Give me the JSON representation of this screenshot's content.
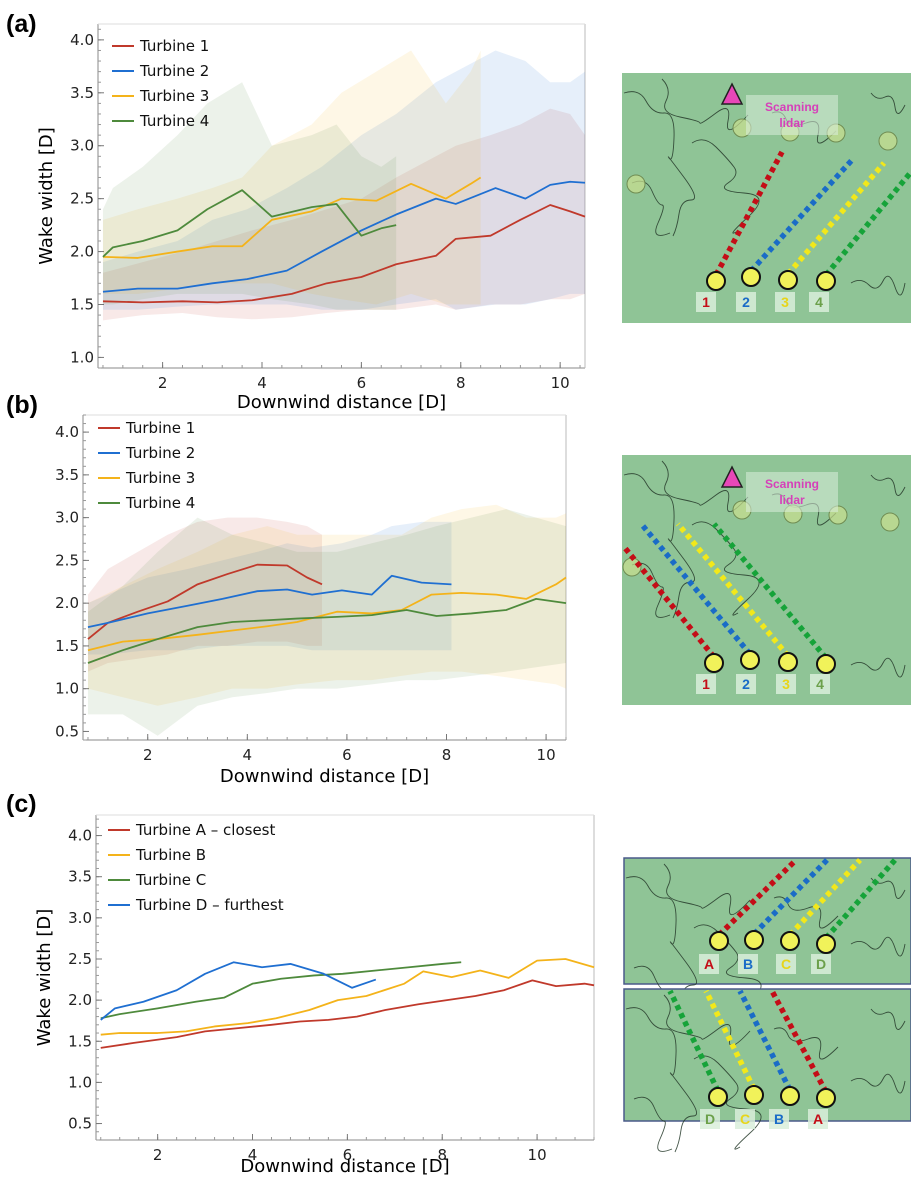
{
  "panels": [
    {
      "label": "(a)"
    },
    {
      "label": "(b)"
    },
    {
      "label": "(c)"
    }
  ],
  "chart_data": [
    {
      "type": "line",
      "xlabel": "Downwind distance [D]",
      "ylabel": "Wake width [D]",
      "xlim": [
        0.7,
        10.5
      ],
      "ylim": [
        0.9,
        4.15
      ],
      "xticks": [
        2,
        4,
        6,
        8,
        10
      ],
      "yticks": [
        1.0,
        1.5,
        2.0,
        2.5,
        3.0,
        3.5,
        4.0
      ],
      "ytick_labels": [
        "1.0",
        "1.5",
        "2.0",
        "2.5",
        "3.0",
        "3.5",
        "4.0"
      ],
      "legend": "top-left",
      "series": [
        {
          "name": "Turbine 1",
          "color": "#c0392b",
          "x": [
            0.8,
            1.6,
            2.4,
            3.1,
            3.8,
            4.6,
            5.3,
            6.0,
            6.7,
            7.5,
            7.9,
            8.6,
            9.2,
            9.8,
            10.2,
            10.5
          ],
          "y": [
            1.53,
            1.52,
            1.53,
            1.52,
            1.54,
            1.6,
            1.7,
            1.76,
            1.88,
            1.96,
            2.12,
            2.15,
            2.3,
            2.44,
            2.38,
            2.33
          ],
          "lo": [
            1.35,
            1.4,
            1.42,
            1.38,
            1.36,
            1.38,
            1.42,
            1.45,
            1.45,
            1.5,
            1.45,
            1.5,
            1.5,
            1.55,
            1.55,
            1.6
          ],
          "hi": [
            1.8,
            1.9,
            2.0,
            2.1,
            2.2,
            2.3,
            2.4,
            2.5,
            2.7,
            2.9,
            3.0,
            3.1,
            3.2,
            3.35,
            3.3,
            3.1
          ]
        },
        {
          "name": "Turbine 2",
          "color": "#1f6fd1",
          "x": [
            0.8,
            1.5,
            2.3,
            3.0,
            3.7,
            4.5,
            5.2,
            6.0,
            6.7,
            7.5,
            7.9,
            8.7,
            9.3,
            9.8,
            10.2,
            10.5
          ],
          "y": [
            1.62,
            1.65,
            1.65,
            1.7,
            1.74,
            1.82,
            2.0,
            2.2,
            2.35,
            2.5,
            2.45,
            2.6,
            2.5,
            2.63,
            2.66,
            2.65
          ],
          "lo": [
            1.45,
            1.45,
            1.48,
            1.5,
            1.5,
            1.5,
            1.45,
            1.45,
            1.5,
            1.55,
            1.45,
            1.5,
            1.5,
            1.55,
            1.6,
            1.6
          ],
          "hi": [
            1.9,
            2.0,
            2.1,
            2.3,
            2.4,
            2.6,
            2.8,
            3.1,
            3.3,
            3.6,
            3.7,
            3.9,
            3.8,
            3.6,
            3.6,
            3.7
          ]
        },
        {
          "name": "Turbine 3",
          "color": "#f4b31a",
          "x": [
            0.8,
            1.5,
            2.3,
            3.0,
            3.6,
            4.2,
            5.0,
            5.6,
            6.3,
            7.0,
            7.7,
            8.2,
            8.4
          ],
          "y": [
            1.95,
            1.94,
            2.0,
            2.05,
            2.05,
            2.3,
            2.38,
            2.5,
            2.48,
            2.64,
            2.5,
            2.64,
            2.7
          ],
          "lo": [
            1.6,
            1.6,
            1.65,
            1.7,
            1.7,
            1.7,
            1.6,
            1.55,
            1.5,
            1.6,
            1.5,
            1.5,
            1.5
          ],
          "hi": [
            2.3,
            2.4,
            2.5,
            2.6,
            2.7,
            3.0,
            3.2,
            3.5,
            3.7,
            3.9,
            3.4,
            3.7,
            3.9
          ]
        },
        {
          "name": "Turbine 4",
          "color": "#4e8a3c",
          "x": [
            0.8,
            1.0,
            1.6,
            2.3,
            2.9,
            3.6,
            4.2,
            5.0,
            5.5,
            6.0,
            6.4,
            6.7
          ],
          "y": [
            1.95,
            2.04,
            2.1,
            2.2,
            2.4,
            2.58,
            2.33,
            2.42,
            2.45,
            2.15,
            2.22,
            2.25
          ],
          "lo": [
            1.5,
            1.5,
            1.55,
            1.6,
            1.6,
            1.6,
            1.55,
            1.5,
            1.45,
            1.45,
            1.45,
            1.45
          ],
          "hi": [
            2.4,
            2.6,
            2.8,
            3.1,
            3.4,
            3.6,
            3.0,
            3.1,
            3.2,
            2.9,
            2.8,
            2.9
          ]
        }
      ]
    },
    {
      "type": "line",
      "xlabel": "Downwind distance [D]",
      "ylabel": "",
      "xlim": [
        0.7,
        10.4
      ],
      "ylim": [
        0.4,
        4.2
      ],
      "xticks": [
        2,
        4,
        6,
        8,
        10
      ],
      "yticks": [
        0.5,
        1.0,
        1.5,
        2.0,
        2.5,
        3.0,
        3.5,
        4.0
      ],
      "ytick_labels": [
        "0.5",
        "1.0",
        "1.5",
        "2.0",
        "2.5",
        "3.0",
        "3.5",
        "4.0"
      ],
      "legend": "top-left",
      "series": [
        {
          "name": "Turbine 1",
          "color": "#c0392b",
          "x": [
            0.8,
            1.2,
            1.8,
            2.4,
            3.0,
            3.6,
            4.2,
            4.8,
            5.2,
            5.5
          ],
          "y": [
            1.58,
            1.77,
            1.9,
            2.02,
            2.22,
            2.34,
            2.45,
            2.44,
            2.3,
            2.22
          ],
          "lo": [
            1.2,
            1.3,
            1.35,
            1.4,
            1.5,
            1.5,
            1.55,
            1.55,
            1.5,
            1.5
          ],
          "hi": [
            2.1,
            2.4,
            2.6,
            2.8,
            2.95,
            3.0,
            3.0,
            2.95,
            2.9,
            2.8
          ]
        },
        {
          "name": "Turbine 2",
          "color": "#1f6fd1",
          "x": [
            0.8,
            1.2,
            2.0,
            2.8,
            3.5,
            4.2,
            4.8,
            5.3,
            5.9,
            6.5,
            6.9,
            7.5,
            8.1
          ],
          "y": [
            1.72,
            1.77,
            1.88,
            1.97,
            2.05,
            2.14,
            2.16,
            2.1,
            2.15,
            2.1,
            2.32,
            2.24,
            2.22
          ],
          "lo": [
            1.4,
            1.4,
            1.45,
            1.45,
            1.5,
            1.5,
            1.5,
            1.45,
            1.45,
            1.45,
            1.45,
            1.45,
            1.45
          ],
          "hi": [
            2.0,
            2.1,
            2.3,
            2.4,
            2.5,
            2.6,
            2.7,
            2.65,
            2.7,
            2.8,
            2.9,
            2.95,
            2.95
          ]
        },
        {
          "name": "Turbine 3",
          "color": "#f4b31a",
          "x": [
            0.8,
            1.5,
            2.2,
            3.0,
            3.7,
            4.4,
            5.0,
            5.8,
            6.5,
            7.1,
            7.7,
            8.3,
            9.0,
            9.6,
            10.2,
            10.4
          ],
          "y": [
            1.45,
            1.55,
            1.58,
            1.63,
            1.68,
            1.73,
            1.78,
            1.9,
            1.88,
            1.92,
            2.1,
            2.12,
            2.1,
            2.05,
            2.22,
            2.3
          ],
          "lo": [
            1.0,
            0.9,
            0.8,
            0.9,
            1.0,
            1.0,
            1.05,
            1.1,
            1.1,
            1.15,
            1.2,
            1.2,
            1.15,
            1.1,
            1.05,
            1.0
          ],
          "hi": [
            2.0,
            2.2,
            2.4,
            2.6,
            2.8,
            2.9,
            2.8,
            2.8,
            2.8,
            2.8,
            3.0,
            3.1,
            3.15,
            3.0,
            3.0,
            3.05
          ]
        },
        {
          "name": "Turbine 4",
          "color": "#4e8a3c",
          "x": [
            0.8,
            1.5,
            2.2,
            3.0,
            3.7,
            4.4,
            5.0,
            5.8,
            6.5,
            7.2,
            7.8,
            8.5,
            9.2,
            9.8,
            10.4
          ],
          "y": [
            1.3,
            1.45,
            1.58,
            1.72,
            1.78,
            1.8,
            1.82,
            1.84,
            1.86,
            1.92,
            1.85,
            1.88,
            1.92,
            2.05,
            2.0
          ],
          "lo": [
            0.7,
            0.7,
            0.45,
            0.8,
            0.9,
            0.95,
            1.0,
            1.0,
            1.05,
            1.1,
            1.1,
            1.15,
            1.2,
            1.25,
            1.3
          ],
          "hi": [
            1.9,
            2.2,
            2.6,
            3.0,
            2.8,
            2.7,
            2.6,
            2.6,
            2.7,
            2.8,
            2.9,
            3.0,
            3.1,
            3.0,
            2.9
          ]
        }
      ]
    },
    {
      "type": "line",
      "xlabel": "Downwind distance [D]",
      "ylabel": "Wake width [D]",
      "xlim": [
        0.7,
        11.2
      ],
      "ylim": [
        0.3,
        4.25
      ],
      "xticks": [
        2,
        4,
        6,
        8,
        10
      ],
      "yticks": [
        0.5,
        1.0,
        1.5,
        2.0,
        2.5,
        3.0,
        3.5,
        4.0
      ],
      "ytick_labels": [
        "0.5",
        "1.0",
        "1.5",
        "2.0",
        "2.5",
        "3.0",
        "3.5",
        "4.0"
      ],
      "legend": "top-left",
      "series": [
        {
          "name": "Turbine A – closest",
          "color": "#c0392b",
          "x": [
            0.8,
            1.5,
            2.4,
            3.0,
            3.7,
            4.4,
            5.0,
            5.6,
            6.2,
            6.8,
            7.5,
            8.1,
            8.7,
            9.3,
            9.9,
            10.4,
            11.0,
            11.2
          ],
          "y": [
            1.42,
            1.48,
            1.55,
            1.62,
            1.66,
            1.7,
            1.74,
            1.76,
            1.8,
            1.88,
            1.95,
            2.0,
            2.05,
            2.12,
            2.24,
            2.17,
            2.2,
            2.18
          ]
        },
        {
          "name": "Turbine B",
          "color": "#f4b31a",
          "x": [
            0.8,
            1.2,
            2.0,
            2.6,
            3.2,
            3.9,
            4.5,
            5.2,
            5.8,
            6.4,
            7.2,
            7.6,
            8.2,
            8.8,
            9.4,
            10.0,
            10.6,
            11.2
          ],
          "y": [
            1.58,
            1.6,
            1.6,
            1.62,
            1.68,
            1.72,
            1.78,
            1.88,
            2.0,
            2.05,
            2.2,
            2.35,
            2.28,
            2.36,
            2.27,
            2.48,
            2.5,
            2.4
          ]
        },
        {
          "name": "Turbine C",
          "color": "#4e8a3c",
          "x": [
            0.8,
            1.2,
            2.0,
            2.8,
            3.4,
            4.0,
            4.6,
            5.3,
            5.9,
            6.6,
            7.3,
            8.0,
            8.4
          ],
          "y": [
            1.78,
            1.83,
            1.9,
            1.98,
            2.03,
            2.2,
            2.26,
            2.3,
            2.32,
            2.36,
            2.4,
            2.44,
            2.46
          ]
        },
        {
          "name": "Turbine D – furthest",
          "color": "#1f6fd1",
          "x": [
            0.8,
            1.1,
            1.7,
            2.4,
            3.0,
            3.6,
            4.2,
            4.8,
            5.5,
            6.1,
            6.6
          ],
          "y": [
            1.76,
            1.9,
            1.98,
            2.12,
            2.32,
            2.46,
            2.4,
            2.44,
            2.32,
            2.15,
            2.25
          ]
        }
      ]
    }
  ],
  "maps": {
    "lidar_label_line1": "Scanning",
    "lidar_label_line2": "lidar",
    "turbine_labels_ab": [
      "1",
      "2",
      "3",
      "4"
    ],
    "turbine_labels_c_top": [
      "A",
      "B",
      "C",
      "D"
    ],
    "turbine_labels_c_bottom": [
      "D",
      "C",
      "B",
      "A"
    ],
    "colors": {
      "red": "#c40d17",
      "blue": "#1a6cc7",
      "yellow": "#f2e81a",
      "green": "#16a339",
      "land": "#8fc496",
      "lidar": "#e847b8",
      "turbine": "#f1f25a"
    }
  }
}
